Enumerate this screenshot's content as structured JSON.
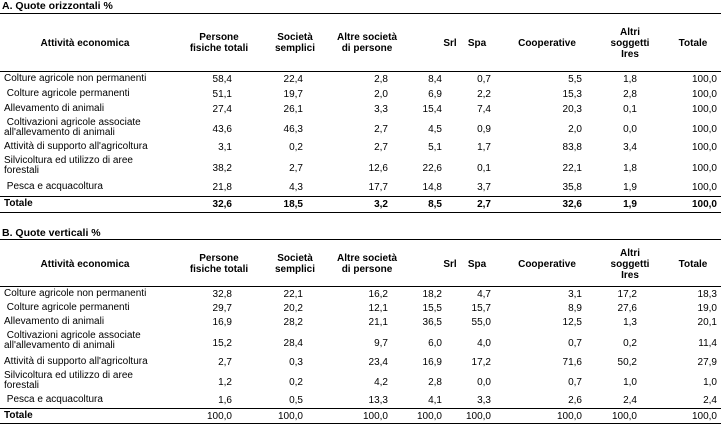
{
  "sections": [
    {
      "title": "A. Quote orizzontali  %",
      "headers": [
        "Attività economica",
        "Persone fisiche totali",
        "Società semplici",
        "Altre società di persone",
        "Srl",
        "Spa",
        "Cooperative",
        "Altri soggetti Ires",
        "Totale"
      ],
      "rows": [
        {
          "label": "Colture agricole non permanenti",
          "values": [
            "58,4",
            "22,4",
            "2,8",
            "8,4",
            "0,7",
            "5,5",
            "1,8",
            "100,0"
          ]
        },
        {
          "label": " Colture agricole permanenti",
          "values": [
            "51,1",
            "19,7",
            "2,0",
            "6,9",
            "2,2",
            "15,3",
            "2,8",
            "100,0"
          ]
        },
        {
          "label": "Allevamento di animali",
          "values": [
            "27,4",
            "26,1",
            "3,3",
            "15,4",
            "7,4",
            "20,3",
            "0,1",
            "100,0"
          ]
        },
        {
          "label": " Coltivazioni agricole associate all'allevamento di animali",
          "values": [
            "43,6",
            "46,3",
            "2,7",
            "4,5",
            "0,9",
            "2,0",
            "0,0",
            "100,0"
          ]
        },
        {
          "label": "Attività di supporto all'agricoltura",
          "values": [
            "3,1",
            "0,2",
            "2,7",
            "5,1",
            "1,7",
            "83,8",
            "3,4",
            "100,0"
          ]
        },
        {
          "label": "Silvicoltura ed utilizzo di aree forestali",
          "values": [
            "38,2",
            "2,7",
            "12,6",
            "22,6",
            "0,1",
            "22,1",
            "1,8",
            "100,0"
          ]
        },
        {
          "label": " Pesca e acquacoltura",
          "values": [
            "21,8",
            "4,3",
            "17,7",
            "14,8",
            "3,7",
            "35,8",
            "1,9",
            "100,0"
          ]
        }
      ],
      "total": {
        "label": "Totale",
        "values": [
          "32,6",
          "18,5",
          "3,2",
          "8,5",
          "2,7",
          "32,6",
          "1,9",
          "100,0"
        ]
      }
    },
    {
      "title": "B. Quote verticali %",
      "headers": [
        "Attività economica",
        "Persone fisiche totali",
        "Società semplici",
        "Altre società di persone",
        "Srl",
        "Spa",
        "Cooperative",
        "Altri soggetti Ires",
        "Totale"
      ],
      "rows": [
        {
          "label": "Colture agricole non permanenti",
          "values": [
            "32,8",
            "22,1",
            "16,2",
            "18,2",
            "4,7",
            "3,1",
            "17,2",
            "18,3"
          ]
        },
        {
          "label": " Colture agricole permanenti",
          "values": [
            "29,7",
            "20,2",
            "12,1",
            "15,5",
            "15,7",
            "8,9",
            "27,6",
            "19,0"
          ]
        },
        {
          "label": "Allevamento di animali",
          "values": [
            "16,9",
            "28,2",
            "21,1",
            "36,5",
            "55,0",
            "12,5",
            "1,3",
            "20,1"
          ]
        },
        {
          "label": " Coltivazioni agricole associate all'allevamento di animali",
          "values": [
            "15,2",
            "28,4",
            "9,7",
            "6,0",
            "4,0",
            "0,7",
            "0,2",
            "11,4"
          ]
        },
        {
          "label": "Attività di supporto all'agricoltura",
          "values": [
            "2,7",
            "0,3",
            "23,4",
            "16,9",
            "17,2",
            "71,6",
            "50,2",
            "27,9"
          ]
        },
        {
          "label": "Silvicoltura ed utilizzo di aree forestali",
          "values": [
            "1,2",
            "0,2",
            "4,2",
            "2,8",
            "0,0",
            "0,7",
            "1,0",
            "1,0"
          ]
        },
        {
          "label": " Pesca e acquacoltura",
          "values": [
            "1,6",
            "0,5",
            "13,3",
            "4,1",
            "3,3",
            "2,6",
            "2,4",
            "2,4"
          ]
        }
      ],
      "total": {
        "label": "Totale",
        "values": [
          "100,0",
          "100,0",
          "100,0",
          "100,0",
          "100,0",
          "100,0",
          "100,0",
          "100,0"
        ]
      }
    }
  ]
}
